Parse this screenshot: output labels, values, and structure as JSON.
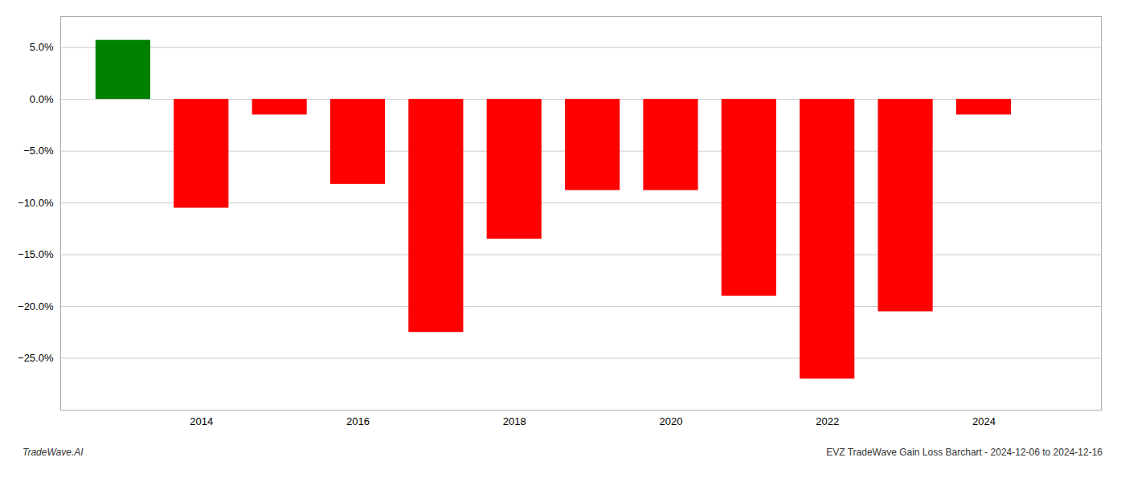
{
  "chart_data": {
    "type": "bar",
    "x": [
      2013,
      2014,
      2015,
      2016,
      2017,
      2018,
      2019,
      2020,
      2021,
      2022,
      2023,
      2024
    ],
    "values": [
      5.7,
      -10.5,
      -1.5,
      -8.2,
      -22.5,
      -13.5,
      -8.8,
      -8.8,
      -19.0,
      -27.0,
      -20.5,
      -1.5
    ],
    "colors": [
      "#008000",
      "#ff0000",
      "#ff0000",
      "#ff0000",
      "#ff0000",
      "#ff0000",
      "#ff0000",
      "#ff0000",
      "#ff0000",
      "#ff0000",
      "#ff0000",
      "#ff0000"
    ],
    "xlim": [
      2012.2,
      2025.5
    ],
    "xticks": [
      2014,
      2016,
      2018,
      2020,
      2022,
      2024
    ],
    "ylim": [
      -30,
      8
    ],
    "yticks": [
      {
        "value": 5.0,
        "label": "5.0%"
      },
      {
        "value": 0.0,
        "label": "0.0%"
      },
      {
        "value": -5.0,
        "label": "−5.0%"
      },
      {
        "value": -10.0,
        "label": "−10.0%"
      },
      {
        "value": -15.0,
        "label": "−15.0%"
      },
      {
        "value": -20.0,
        "label": "−20.0%"
      },
      {
        "value": -25.0,
        "label": "−25.0%"
      }
    ],
    "grid": true,
    "annotations": [
      "TradeWave.AI",
      "EVZ TradeWave Gain Loss Barchart - 2024-12-06 to 2024-12-16"
    ]
  }
}
